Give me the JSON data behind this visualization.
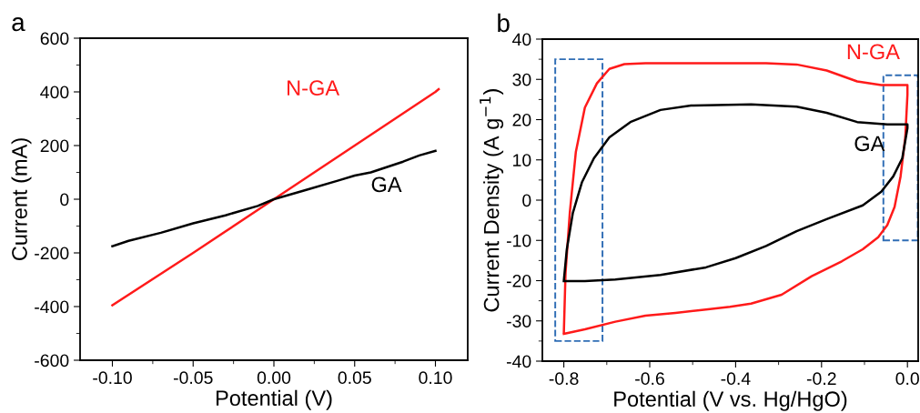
{
  "chart_data": [
    {
      "type": "line",
      "title": "a",
      "xlabel": "Potential (V)",
      "ylabel": "Current (mA)",
      "xlim": [
        -0.12,
        0.12
      ],
      "xticks": [
        {
          "value": -0.1,
          "label": "-0.10"
        },
        {
          "value": -0.05,
          "label": "-0.05"
        },
        {
          "value": 0,
          "label": "0.00"
        },
        {
          "value": 0.05,
          "label": "0.05"
        },
        {
          "value": 0.1,
          "label": "0.10"
        }
      ],
      "ylim": [
        -600,
        600
      ],
      "yticks": [
        {
          "value": -600,
          "label": "-600"
        },
        {
          "value": -400,
          "label": "-400"
        },
        {
          "value": -200,
          "label": "-200"
        },
        0,
        200,
        400,
        600
      ],
      "grid": false,
      "legend": false,
      "line_style": "solid",
      "series": [
        {
          "name": "N-GA",
          "color": "#ff1a1a",
          "x": [
            -0.1,
            -0.05,
            0,
            0.05,
            0.1,
            0.102
          ],
          "values": [
            -395,
            -200,
            0,
            200,
            400,
            410
          ]
        },
        {
          "name": "GA",
          "color": "#000000",
          "x": [
            -0.1,
            -0.09,
            -0.07,
            -0.05,
            -0.03,
            -0.01,
            0,
            0.02,
            0.04,
            0.05,
            0.06,
            0.08,
            0.09,
            0.1
          ],
          "values": [
            -175,
            -155,
            -125,
            -90,
            -60,
            -25,
            0,
            35,
            70,
            88,
            100,
            140,
            163,
            180
          ]
        }
      ]
    },
    {
      "type": "line",
      "title": "b",
      "xlabel": "Potential (V vs. Hg/HgO)",
      "ylabel": "Current Density (A g$^{−1}$)",
      "xlim": [
        -0.85,
        0.025
      ],
      "xticks": [
        {
          "value": -0.8,
          "label": "-0.8"
        },
        {
          "value": -0.6,
          "label": "-0.6"
        },
        {
          "value": -0.4,
          "label": "-0.4"
        },
        {
          "value": -0.2,
          "label": "-0.2"
        },
        {
          "value": 0,
          "label": "0.0"
        }
      ],
      "ylim": [
        -40,
        40
      ],
      "yticks": [
        {
          "value": -40,
          "label": "-40"
        },
        {
          "value": -30,
          "label": "-30"
        },
        {
          "value": -20,
          "label": "-20"
        },
        {
          "value": -10,
          "label": "-10"
        },
        0,
        10,
        20,
        30,
        40
      ],
      "grid": false,
      "legend": false,
      "line_style": "solid",
      "series": [
        {
          "name": "N-GA",
          "color": "#ff1a1a",
          "x": [
            -0.8,
            -0.796,
            -0.786,
            -0.772,
            -0.751,
            -0.723,
            -0.694,
            -0.659,
            -0.61,
            -0.469,
            -0.329,
            -0.258,
            -0.188,
            -0.117,
            -0.061,
            0,
            0,
            -0.005,
            -0.016,
            -0.03,
            -0.047,
            -0.068,
            -0.104,
            -0.153,
            -0.223,
            -0.293,
            -0.364,
            -0.413,
            -0.469,
            -0.54,
            -0.61,
            -0.68,
            -0.751,
            -0.8
          ],
          "values": [
            -33,
            -18,
            -3,
            12,
            23,
            29,
            32.6,
            33.8,
            34,
            34,
            34,
            33.7,
            32.2,
            29.5,
            28.6,
            28.6,
            26.2,
            15.6,
            5.9,
            -1.7,
            -6.2,
            -9.2,
            -12.2,
            -15.2,
            -18.9,
            -23.5,
            -25.7,
            -26.5,
            -27.2,
            -28,
            -28.7,
            -30.2,
            -32.1,
            -33.2
          ]
        },
        {
          "name": "GA",
          "color": "#000000",
          "x": [
            -0.8,
            -0.793,
            -0.779,
            -0.758,
            -0.73,
            -0.694,
            -0.645,
            -0.575,
            -0.504,
            -0.364,
            -0.258,
            -0.188,
            -0.117,
            -0.047,
            0,
            0,
            -0.012,
            -0.033,
            -0.061,
            -0.104,
            -0.188,
            -0.258,
            -0.329,
            -0.4,
            -0.469,
            -0.575,
            -0.68,
            -0.751,
            -0.8
          ],
          "values": [
            -20,
            -12.2,
            -3.2,
            4.4,
            10.4,
            15.6,
            19.4,
            22.4,
            23.5,
            23.8,
            23.2,
            21.7,
            19.4,
            18.8,
            18.8,
            17.9,
            10.4,
            5.9,
            2.1,
            -1.3,
            -4.7,
            -7.7,
            -11.4,
            -14.4,
            -16.7,
            -18.6,
            -19.7,
            -20.1,
            -20.1
          ]
        }
      ]
    }
  ]
}
